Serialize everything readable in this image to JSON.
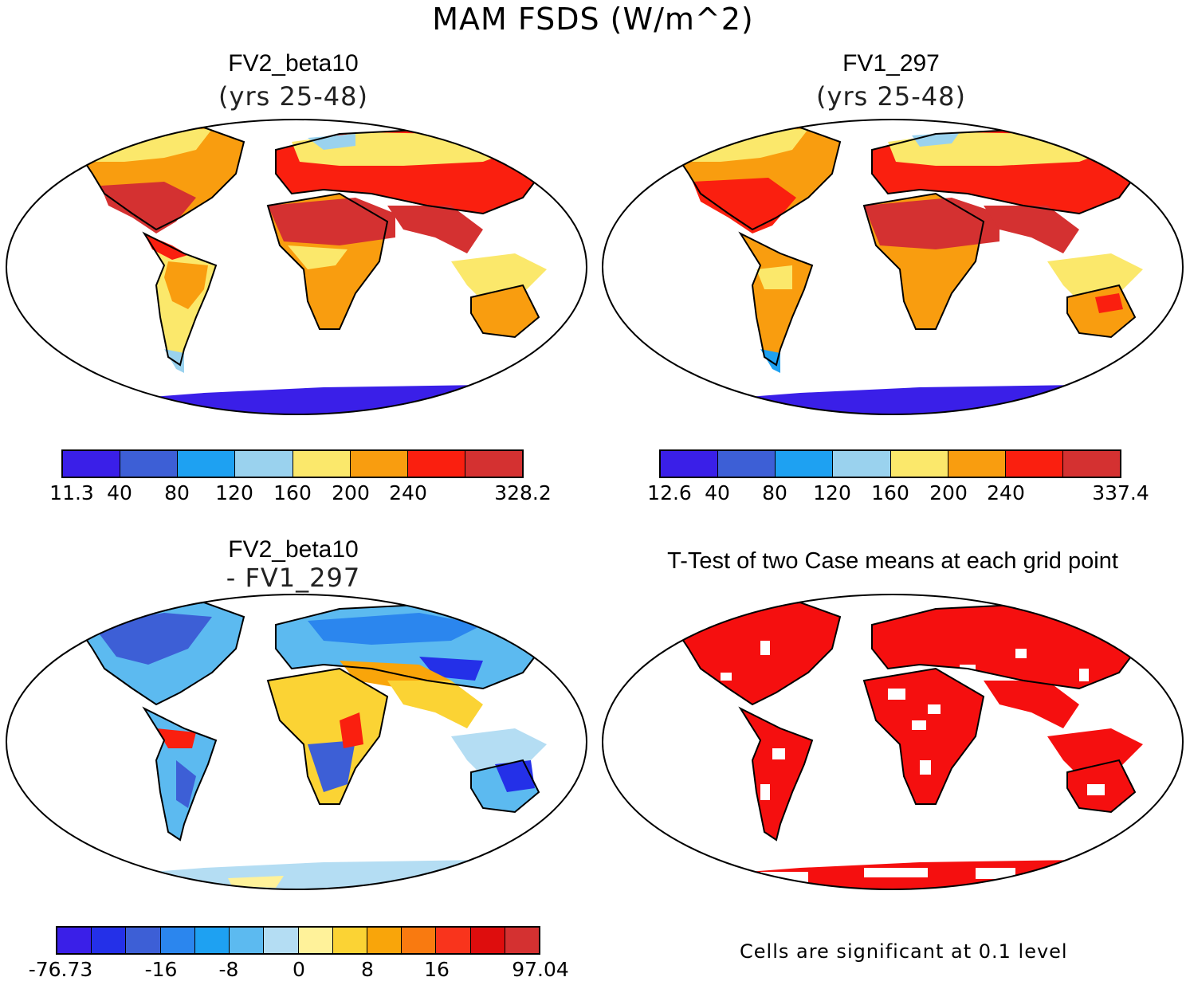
{
  "title": "MAM FSDS (W/m^2)",
  "panels": [
    {
      "title": "FV2_beta10",
      "subtitle": "(yrs 25-48)"
    },
    {
      "title": "FV1_297",
      "subtitle": "(yrs 25-48)"
    },
    {
      "title": "FV2_beta10",
      "subtitle": "- FV1_297"
    },
    {
      "title": "T-Test of two Case means at each grid point",
      "subtitle": ""
    }
  ],
  "colorbars": [
    {
      "colors": [
        "#3a1fe8",
        "#3d5fd6",
        "#1ea1f2",
        "#9ad2ee",
        "#fbe86b",
        "#f99d0f",
        "#fa1f0f",
        "#d43131"
      ],
      "ticks": [
        "11.3",
        "40",
        "80",
        "120",
        "160",
        "200",
        "240",
        "328.2"
      ]
    },
    {
      "colors": [
        "#3a1fe8",
        "#3d5fd6",
        "#1ea1f2",
        "#9ad2ee",
        "#fbe86b",
        "#f99d0f",
        "#fa1f0f",
        "#d43131"
      ],
      "ticks": [
        "12.6",
        "40",
        "80",
        "120",
        "160",
        "200",
        "240",
        "337.4"
      ]
    },
    {
      "colors": [
        "#3a1fe8",
        "#2430e8",
        "#3d5fd6",
        "#2b86ee",
        "#1ea1f2",
        "#5cbaf0",
        "#b4ddf3",
        "#fff29a",
        "#fbd334",
        "#f9a50a",
        "#f97a10",
        "#f9341c",
        "#de0d0d",
        "#d43131"
      ],
      "ticks": [
        "-76.73",
        "-16",
        "-8",
        "0",
        "8",
        "16",
        "97.04"
      ]
    }
  ],
  "note": "Cells are significant at 0.1 level",
  "map_fills": {
    "ocean": "#ffffff",
    "land_outline": "#000000",
    "significant": "#f50f0f",
    "antarctica_p1": "#3a1fe8",
    "antarctica_diff": "#b4ddf3"
  }
}
